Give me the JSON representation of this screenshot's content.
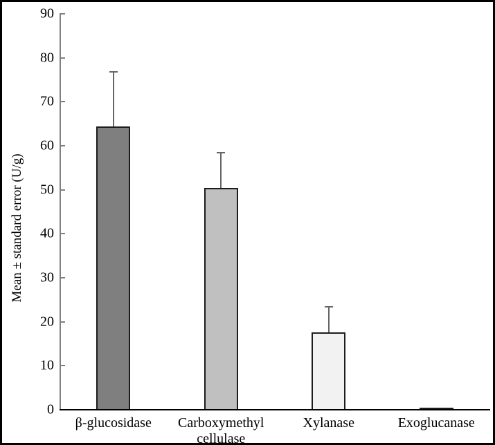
{
  "figure": {
    "background": "#ffffff",
    "frame_color": "#000000"
  },
  "chart_data": {
    "type": "bar",
    "title": "",
    "xlabel": "",
    "ylabel": "Mean ± standard error (U/g)",
    "categories": [
      "β-glucosidase",
      "Carboxymethyl cellulase",
      "Xylanase",
      "Exoglucanase"
    ],
    "values": [
      64.3,
      50.3,
      17.5,
      0.3
    ],
    "errors_plus": [
      12.5,
      8.2,
      5.9,
      0
    ],
    "bar_colors": [
      "#7f7f7f",
      "#c0c0c0",
      "#f2f2f2",
      "#808080"
    ],
    "bar_border_color": "#1c1c1c",
    "error_bar_color": "#666666",
    "y_axis_color": "#7f7f7f",
    "baseline_color": "#000000",
    "ylim": [
      0,
      90
    ],
    "yticks": [
      0,
      10,
      20,
      30,
      40,
      50,
      60,
      70,
      80,
      90
    ],
    "grid": false,
    "legend": "none"
  }
}
